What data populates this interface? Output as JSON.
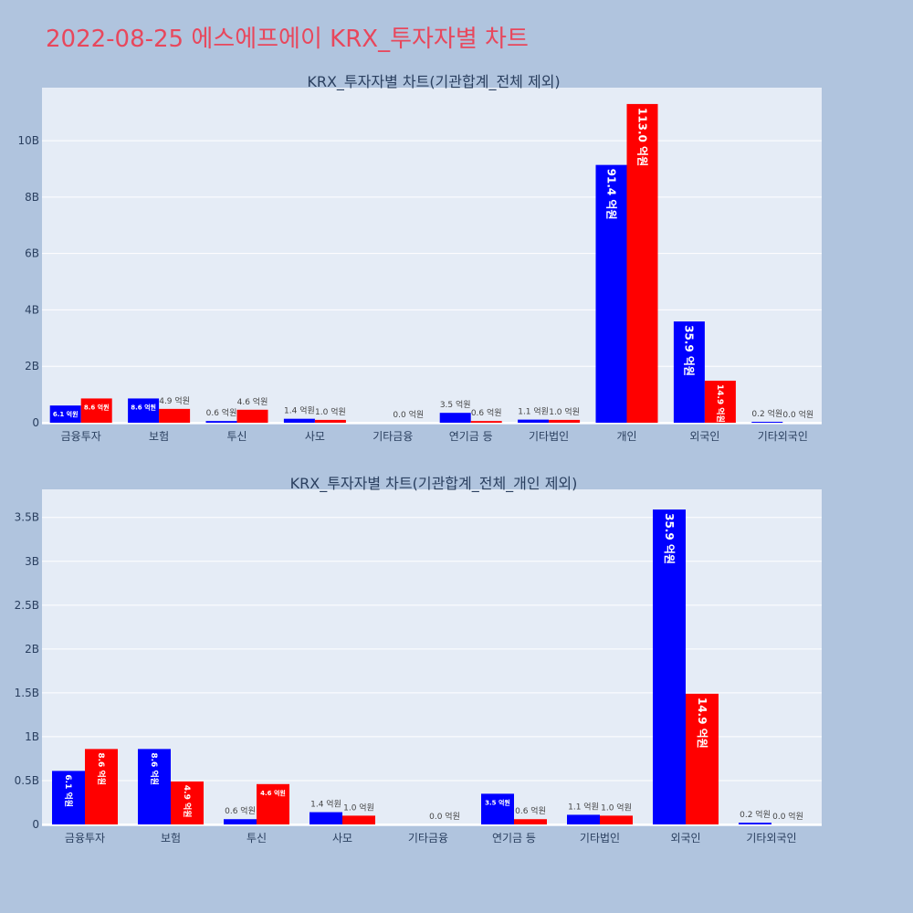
{
  "title": "2022-08-25 에스에프에이 KRX_투자자별 차트",
  "colors": {
    "title": "#e8475c",
    "page_bg": "#b0c4de",
    "plot_bg": "#e5ecf6",
    "series_blue": "#0000ff",
    "series_red": "#ff0000"
  },
  "chart_data": [
    {
      "type": "bar",
      "title": "KRX_투자자별 차트(기관합계_전체 제외)",
      "categories": [
        "금융투자",
        "보험",
        "투신",
        "사모",
        "기타금융",
        "연기금 등",
        "기타법인",
        "개인",
        "외국인",
        "기타외국인"
      ],
      "series": [
        {
          "color": "#0000ff",
          "values": [
            0.61,
            0.86,
            0.06,
            0.14,
            0.0,
            0.35,
            0.11,
            9.14,
            3.59,
            0.02
          ],
          "labels": [
            "6.1 억원",
            "8.6 억원",
            "0.6 억원",
            "1.4 억원",
            "",
            "3.5 억원",
            "1.1 억원",
            "91.4 억원",
            "35.9 억원",
            "0.2 억원"
          ]
        },
        {
          "color": "#ff0000",
          "values": [
            0.86,
            0.49,
            0.46,
            0.1,
            0.0,
            0.06,
            0.1,
            11.3,
            1.49,
            0.0
          ],
          "labels": [
            "8.6 억원",
            "4.9 억원",
            "4.6 억원",
            "1.0 억원",
            "0.0 억원",
            "0.6 억원",
            "1.0 억원",
            "113.0 억원",
            "14.9 억원",
            "0.0 억원"
          ]
        }
      ],
      "yticks": [
        0,
        2,
        4,
        6,
        8,
        10
      ],
      "ytick_labels": [
        "0",
        "2B",
        "4B",
        "6B",
        "8B",
        "10B"
      ],
      "ylim": [
        0,
        11.88
      ],
      "grid": true
    },
    {
      "type": "bar",
      "title": "KRX_투자자별 차트(기관합계_전체_개인 제외)",
      "categories": [
        "금융투자",
        "보험",
        "투신",
        "사모",
        "기타금융",
        "연기금 등",
        "기타법인",
        "외국인",
        "기타외국인"
      ],
      "series": [
        {
          "color": "#0000ff",
          "values": [
            0.61,
            0.86,
            0.06,
            0.14,
            0.0,
            0.35,
            0.11,
            3.59,
            0.02
          ],
          "labels": [
            "6.1 억원",
            "8.6 억원",
            "0.6 억원",
            "1.4 억원",
            "",
            "3.5 억원",
            "1.1 억원",
            "35.9 억원",
            "0.2 억원"
          ]
        },
        {
          "color": "#ff0000",
          "values": [
            0.86,
            0.49,
            0.46,
            0.1,
            0.0,
            0.06,
            0.1,
            1.49,
            0.0
          ],
          "labels": [
            "8.6 억원",
            "4.9 억원",
            "4.6 억원",
            "1.0 억원",
            "0.0 억원",
            "0.6 억원",
            "1.0 억원",
            "14.9 억원",
            "0.0 억원"
          ]
        }
      ],
      "yticks": [
        0,
        0.5,
        1,
        1.5,
        2,
        2.5,
        3,
        3.5
      ],
      "ytick_labels": [
        "0",
        "0.5B",
        "1B",
        "1.5B",
        "2B",
        "2.5B",
        "3B",
        "3.5B"
      ],
      "ylim": [
        0,
        3.82
      ],
      "grid": true
    }
  ]
}
